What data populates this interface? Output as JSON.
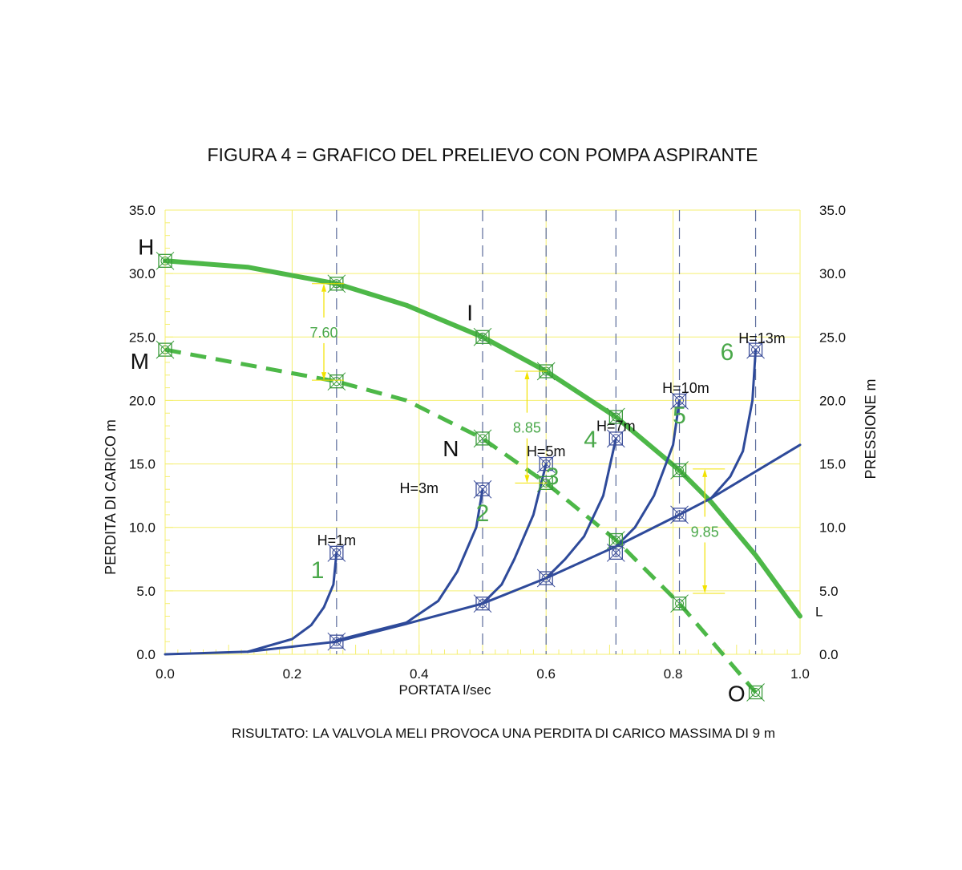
{
  "chart_data": {
    "type": "line",
    "title": "FIGURA  4 = GRAFICO DEL PRELIEVO CON POMPA ASPIRANTE",
    "xlabel": "PORTATA  l/sec",
    "ylabel": "PERDITA DI CARICO   m",
    "ylabel_right": "PRESSIONE   m",
    "footer": "RISULTATO: LA VALVOLA MELI PROVOCA UNA PERDITA DI CARICO MASSIMA DI 9 m",
    "xlim": [
      0,
      1.0
    ],
    "ylim": [
      0,
      35
    ],
    "xticks": [
      "0.0",
      "0.2",
      "0.4",
      "0.6",
      "0.8",
      "1.0"
    ],
    "yticks": [
      "0.0",
      "5.0",
      "10.0",
      "15.0",
      "20.0",
      "25.0",
      "30.0",
      "35.0"
    ],
    "grid": true,
    "colors": {
      "pump": "#4db848",
      "system": "#2e4a9a",
      "grid": "#f5ef70",
      "dim": "#f2e200",
      "ref": "#5a6a9a"
    },
    "reference_x": [
      0.27,
      0.5,
      0.6,
      0.71,
      0.81,
      0.93
    ],
    "series": [
      {
        "name": "pump",
        "style": "solid",
        "points": [
          [
            0,
            31
          ],
          [
            0.13,
            30.5
          ],
          [
            0.27,
            29.2
          ],
          [
            0.38,
            27.5
          ],
          [
            0.5,
            25
          ],
          [
            0.6,
            22.3
          ],
          [
            0.71,
            18.7
          ],
          [
            0.81,
            14.5
          ],
          [
            0.86,
            12
          ],
          [
            0.93,
            7.8
          ],
          [
            1.0,
            3
          ]
        ]
      },
      {
        "name": "pump-minus-loss",
        "style": "dashed",
        "points": [
          [
            0,
            24
          ],
          [
            0.27,
            21.5
          ],
          [
            0.38,
            20
          ],
          [
            0.5,
            17
          ],
          [
            0.6,
            13.5
          ],
          [
            0.71,
            9
          ],
          [
            0.81,
            4
          ],
          [
            0.93,
            -3
          ]
        ]
      },
      {
        "name": "system",
        "style": "system",
        "points": [
          [
            0,
            0
          ],
          [
            0.13,
            0.2
          ],
          [
            0.27,
            1
          ],
          [
            0.38,
            2.4
          ],
          [
            0.5,
            4
          ],
          [
            0.6,
            6
          ],
          [
            0.71,
            8.5
          ],
          [
            0.81,
            11
          ],
          [
            0.86,
            12.3
          ],
          [
            1.0,
            16.5
          ]
        ]
      },
      {
        "name": "valve-1",
        "style": "system",
        "points": [
          [
            0.13,
            0.2
          ],
          [
            0.2,
            1.2
          ],
          [
            0.23,
            2.3
          ],
          [
            0.25,
            3.7
          ],
          [
            0.265,
            5.5
          ],
          [
            0.27,
            8
          ]
        ]
      },
      {
        "name": "valve-2",
        "style": "system",
        "points": [
          [
            0.27,
            1.1
          ],
          [
            0.38,
            2.5
          ],
          [
            0.43,
            4.2
          ],
          [
            0.46,
            6.5
          ],
          [
            0.49,
            10
          ],
          [
            0.5,
            13
          ]
        ]
      },
      {
        "name": "valve-3",
        "style": "system",
        "points": [
          [
            0.5,
            4
          ],
          [
            0.53,
            5.5
          ],
          [
            0.55,
            7.5
          ],
          [
            0.58,
            11
          ],
          [
            0.6,
            15
          ]
        ]
      },
      {
        "name": "valve-4",
        "style": "system",
        "points": [
          [
            0.6,
            6
          ],
          [
            0.63,
            7.5
          ],
          [
            0.66,
            9.3
          ],
          [
            0.69,
            12.5
          ],
          [
            0.71,
            17
          ]
        ]
      },
      {
        "name": "valve-5",
        "style": "system",
        "points": [
          [
            0.71,
            8.5
          ],
          [
            0.74,
            10
          ],
          [
            0.77,
            12.5
          ],
          [
            0.8,
            16.5
          ],
          [
            0.81,
            20
          ]
        ]
      },
      {
        "name": "valve-6",
        "style": "system",
        "points": [
          [
            0.86,
            12.3
          ],
          [
            0.89,
            14
          ],
          [
            0.91,
            16
          ],
          [
            0.925,
            20
          ],
          [
            0.93,
            24
          ]
        ]
      }
    ],
    "green_markers": [
      [
        0,
        31
      ],
      [
        0.27,
        29.2
      ],
      [
        0.5,
        25
      ],
      [
        0.6,
        22.3
      ],
      [
        0.71,
        18.7
      ],
      [
        0.81,
        14.5
      ],
      [
        0,
        24
      ],
      [
        0.27,
        21.5
      ],
      [
        0.5,
        17
      ],
      [
        0.6,
        13.5
      ],
      [
        0.71,
        9
      ],
      [
        0.81,
        4
      ],
      [
        0.93,
        -3
      ]
    ],
    "blue_markers": [
      [
        0.27,
        8
      ],
      [
        0.27,
        1
      ],
      [
        0.5,
        13
      ],
      [
        0.5,
        4
      ],
      [
        0.6,
        15
      ],
      [
        0.6,
        6
      ],
      [
        0.71,
        17
      ],
      [
        0.71,
        8
      ],
      [
        0.81,
        20
      ],
      [
        0.81,
        11
      ],
      [
        0.93,
        24
      ]
    ],
    "dimensions": [
      {
        "label": "7.60",
        "x": 0.25,
        "from": 29.2,
        "to": 21.6
      },
      {
        "label": "8.85",
        "x": 0.57,
        "from": 22.3,
        "to": 13.5
      },
      {
        "label": "9.85",
        "x": 0.85,
        "from": 14.6,
        "to": 4.8
      }
    ],
    "point_letters": [
      {
        "t": "H",
        "x": -0.03,
        "y": 31.5
      },
      {
        "t": "M",
        "x": -0.04,
        "y": 22.5
      },
      {
        "t": "I",
        "x": 0.48,
        "y": 26.3
      },
      {
        "t": "N",
        "x": 0.45,
        "y": 15.6
      },
      {
        "t": "O",
        "x": 0.9,
        "y": -3.7
      },
      {
        "t": "L",
        "x": 1.03,
        "y": 3
      }
    ],
    "valve_numbers": [
      {
        "t": "1",
        "x": 0.24,
        "y": 6
      },
      {
        "t": "2",
        "x": 0.5,
        "y": 10.5
      },
      {
        "t": "3",
        "x": 0.61,
        "y": 13.4
      },
      {
        "t": "4",
        "x": 0.67,
        "y": 16.3
      },
      {
        "t": "5",
        "x": 0.81,
        "y": 18.2
      },
      {
        "t": "6",
        "x": 0.885,
        "y": 23.2
      }
    ],
    "valve_heights": [
      {
        "t": "H=1m",
        "x": 0.27,
        "y": 8.6
      },
      {
        "t": "H=3m",
        "x": 0.4,
        "y": 12.7
      },
      {
        "t": "H=5m",
        "x": 0.6,
        "y": 15.6
      },
      {
        "t": "H=7m",
        "x": 0.71,
        "y": 17.6
      },
      {
        "t": "H=10m",
        "x": 0.82,
        "y": 20.6
      },
      {
        "t": "H=13m",
        "x": 0.94,
        "y": 24.5
      }
    ]
  }
}
